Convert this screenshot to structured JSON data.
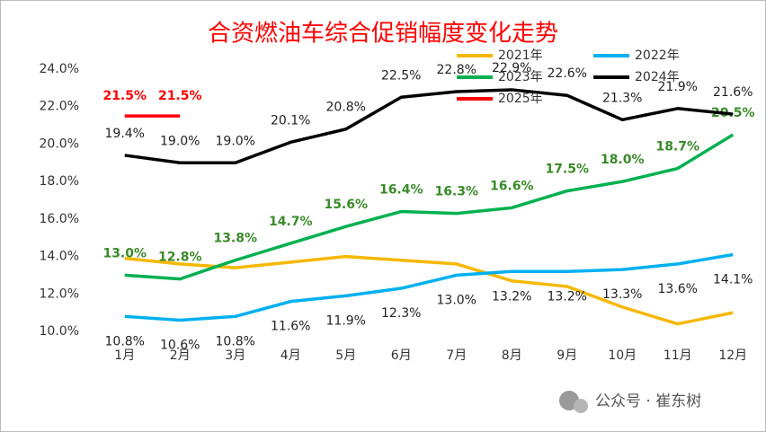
{
  "chart_data": {
    "type": "line",
    "title": "合资燃油车综合促销幅度变化走势",
    "categories": [
      "1月",
      "2月",
      "3月",
      "4月",
      "5月",
      "6月",
      "7月",
      "8月",
      "9月",
      "10月",
      "11月",
      "12月"
    ],
    "series": [
      {
        "name": "2021年",
        "color": "#F5B800",
        "values": [
          13.9,
          13.6,
          13.4,
          13.7,
          14.0,
          13.8,
          13.6,
          12.7,
          12.4,
          11.3,
          10.4,
          11.0
        ]
      },
      {
        "name": "2022年",
        "color": "#00B0F0",
        "label_color": "#222222",
        "values": [
          10.8,
          10.6,
          10.8,
          11.6,
          11.9,
          12.3,
          13.0,
          13.2,
          13.2,
          13.3,
          13.6,
          14.1
        ],
        "value_labels": [
          "10.8%",
          "10.6%",
          "10.8%",
          "11.6%",
          "11.9%",
          "12.3%",
          "13.0%",
          "13.2%",
          "13.2%",
          "13.3%",
          "13.6%",
          "14.1%"
        ]
      },
      {
        "name": "2023年",
        "color": "#00B050",
        "label_color": "#3A8A2A",
        "values": [
          13.0,
          12.8,
          13.8,
          14.7,
          15.6,
          16.4,
          16.3,
          16.6,
          17.5,
          18.0,
          18.7,
          20.5
        ],
        "value_labels": [
          "13.0%",
          "12.8%",
          "13.8%",
          "14.7%",
          "15.6%",
          "16.4%",
          "16.3%",
          "16.6%",
          "17.5%",
          "18.0%",
          "18.7%",
          "20.5%"
        ]
      },
      {
        "name": "2024年",
        "color": "#000000",
        "label_color": "#222222",
        "values": [
          19.4,
          19.0,
          19.0,
          20.1,
          20.8,
          22.5,
          22.8,
          22.9,
          22.6,
          21.3,
          21.9,
          21.6
        ],
        "value_labels": [
          "19.4%",
          "19.0%",
          "19.0%",
          "20.1%",
          "20.8%",
          "22.5%",
          "22.8%",
          "22.9%",
          "22.6%",
          "21.3%",
          "21.9%",
          "21.6%"
        ]
      },
      {
        "name": "2025年",
        "color": "#FF0000",
        "label_color": "#FF0000",
        "values": [
          21.5,
          21.5,
          null,
          null,
          null,
          null,
          null,
          null,
          null,
          null,
          null,
          null
        ],
        "value_labels": [
          "21.5%",
          "21.5%",
          null,
          null,
          null,
          null,
          null,
          null,
          null,
          null,
          null,
          null
        ]
      }
    ],
    "ylim": [
      10,
      24
    ],
    "yticks": [
      {
        "value": 10,
        "label": "10.0%"
      },
      {
        "value": 12,
        "label": "12.0%"
      },
      {
        "value": 14,
        "label": "14.0%"
      },
      {
        "value": 16,
        "label": "16.0%"
      },
      {
        "value": 18,
        "label": "18.0%"
      },
      {
        "value": 20,
        "label": "20.0%"
      },
      {
        "value": 22,
        "label": "22.0%"
      },
      {
        "value": 24,
        "label": "24.0%"
      }
    ],
    "watermark": "公众号 · 崔东树"
  }
}
